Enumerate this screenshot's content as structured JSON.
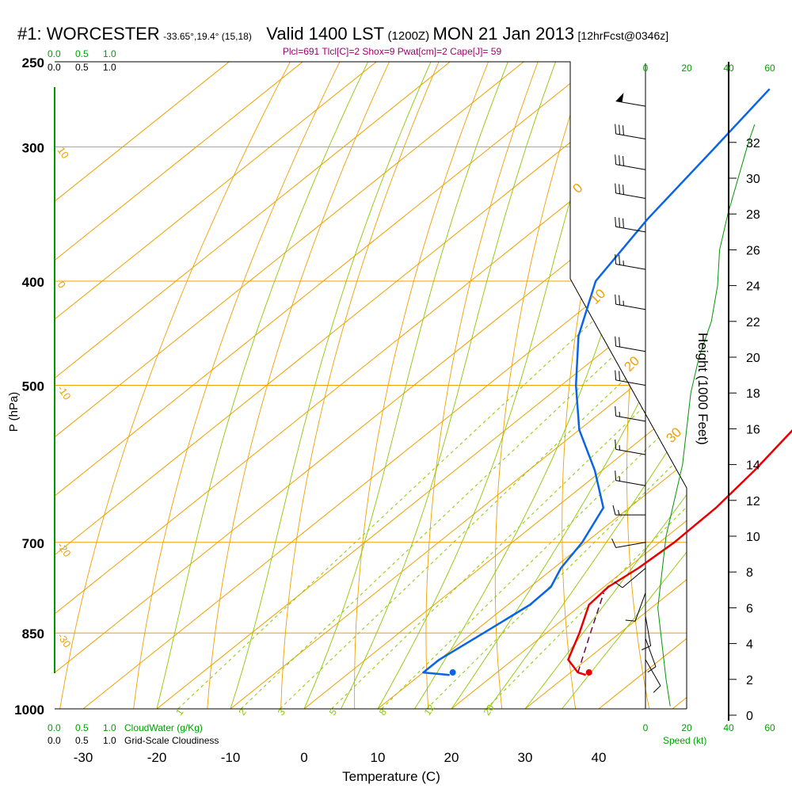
{
  "header": {
    "station": "#1: WORCESTER",
    "coords": "-33.65°,19.4° (15,18)",
    "valid": "Valid 1400 LST",
    "utc": "(1200Z)",
    "date": "MON 21 Jan 2013",
    "forecast": "[12hrFcst@0346z]",
    "indices": "Plcl=691 Tlcl[C]=2 Shox=9 Pwat[cm]=2 Cape[J]= 59"
  },
  "scales": {
    "cloudwater_ticks": [
      "0.0",
      "0.5",
      "1.0"
    ],
    "cloudiness_ticks": [
      "0.0",
      "0.5",
      "1.0"
    ],
    "cloudwater_label": "CloudWater (g/Kg)",
    "cloudiness_label": "Grid-Scale Cloudiness",
    "speed_ticks": [
      "0",
      "20",
      "40",
      "60"
    ],
    "speed_label": "Speed (kt)"
  },
  "colors": {
    "isotherm": "#f0a000",
    "dry_adiabat": "#8cc800",
    "moist_adiabat": "#8cc800",
    "mixing_ratio": "#8cc800",
    "temperature": "#e60000",
    "dewpoint": "#0a64e6",
    "parcel": "#6e0046",
    "speed": "#009600",
    "green_text": "#00a000",
    "index_text": "#a0006e"
  },
  "chart_data": {
    "type": "skew-t log-p sounding",
    "ylabel": "P (hPa)",
    "xlabel": "Temperature (C)",
    "y2label": "Height (1000 Feet)",
    "pressure_ticks": [
      250,
      300,
      400,
      500,
      700,
      850,
      1000
    ],
    "temperature_ticks": [
      -30,
      -20,
      -10,
      0,
      10,
      20,
      30,
      40
    ],
    "height_ticks_kft": [
      0,
      2,
      4,
      6,
      8,
      10,
      12,
      14,
      16,
      18,
      20,
      22,
      24,
      26,
      28,
      30,
      32
    ],
    "isotherm_labels": [
      "10",
      "0",
      "-10",
      "-20",
      "-30",
      "0",
      "10",
      "20",
      "30"
    ],
    "mixing_ratio_labels": [
      "1",
      "2",
      "3",
      "5",
      "8",
      "12",
      "20"
    ],
    "temperature_profile": [
      {
        "p": 930,
        "t": 32.5
      },
      {
        "p": 925,
        "t": 31.0
      },
      {
        "p": 900,
        "t": 27.5
      },
      {
        "p": 850,
        "t": 24.5
      },
      {
        "p": 800,
        "t": 21.0
      },
      {
        "p": 770,
        "t": 20.6
      },
      {
        "p": 740,
        "t": 21.5
      },
      {
        "p": 700,
        "t": 22.0
      },
      {
        "p": 650,
        "t": 21.8
      },
      {
        "p": 600,
        "t": 20.7
      },
      {
        "p": 550,
        "t": 19.0
      },
      {
        "p": 500,
        "t": 16.5
      },
      {
        "p": 450,
        "t": 13.0
      },
      {
        "p": 400,
        "t": 9.5
      },
      {
        "p": 350,
        "t": 6.0
      },
      {
        "p": 300,
        "t": 1.5
      },
      {
        "p": 265,
        "t": -1.0
      }
    ],
    "dewpoint_profile": [
      {
        "p": 930,
        "t": 14.0
      },
      {
        "p": 925,
        "t": 10.0
      },
      {
        "p": 900,
        "t": 10.0
      },
      {
        "p": 850,
        "t": 11.5
      },
      {
        "p": 800,
        "t": 13.0
      },
      {
        "p": 770,
        "t": 12.8
      },
      {
        "p": 740,
        "t": 11.0
      },
      {
        "p": 700,
        "t": 9.5
      },
      {
        "p": 650,
        "t": 6.5
      },
      {
        "p": 600,
        "t": -1.0
      },
      {
        "p": 550,
        "t": -10.0
      },
      {
        "p": 500,
        "t": -18.0
      },
      {
        "p": 450,
        "t": -26.0
      },
      {
        "p": 400,
        "t": -33.0
      },
      {
        "p": 350,
        "t": -36.5
      },
      {
        "p": 300,
        "t": -39.5
      },
      {
        "p": 265,
        "t": -42.0
      }
    ],
    "parcel_profile": [
      {
        "p": 925,
        "t": 31.0
      },
      {
        "p": 850,
        "t": 26.0
      },
      {
        "p": 780,
        "t": 21.0
      }
    ],
    "surface_temperature_marker": {
      "p": 925,
      "t": 32.5
    },
    "surface_dewpoint_marker": {
      "p": 925,
      "t": 14.0
    },
    "wind_barbs": [
      {
        "p": 275,
        "speed": 50,
        "dir": 280
      },
      {
        "p": 295,
        "speed": 30,
        "dir": 280
      },
      {
        "p": 315,
        "speed": 30,
        "dir": 280
      },
      {
        "p": 335,
        "speed": 30,
        "dir": 280
      },
      {
        "p": 360,
        "speed": 30,
        "dir": 280
      },
      {
        "p": 390,
        "speed": 25,
        "dir": 280
      },
      {
        "p": 425,
        "speed": 25,
        "dir": 280
      },
      {
        "p": 465,
        "speed": 20,
        "dir": 280
      },
      {
        "p": 500,
        "speed": 20,
        "dir": 280
      },
      {
        "p": 540,
        "speed": 15,
        "dir": 280
      },
      {
        "p": 580,
        "speed": 15,
        "dir": 280
      },
      {
        "p": 620,
        "speed": 15,
        "dir": 280
      },
      {
        "p": 660,
        "speed": 15,
        "dir": 270
      },
      {
        "p": 700,
        "speed": 10,
        "dir": 260
      },
      {
        "p": 740,
        "speed": 10,
        "dir": 230
      },
      {
        "p": 780,
        "speed": 10,
        "dir": 200
      },
      {
        "p": 820,
        "speed": 10,
        "dir": 170
      },
      {
        "p": 860,
        "speed": 10,
        "dir": 160
      },
      {
        "p": 900,
        "speed": 10,
        "dir": 150
      }
    ],
    "speed_profile": [
      {
        "h": 0.5,
        "kt": 12
      },
      {
        "h": 2,
        "kt": 10
      },
      {
        "h": 4,
        "kt": 8
      },
      {
        "h": 6,
        "kt": 6
      },
      {
        "h": 8,
        "kt": 8
      },
      {
        "h": 10,
        "kt": 10
      },
      {
        "h": 12,
        "kt": 14
      },
      {
        "h": 14,
        "kt": 18
      },
      {
        "h": 16,
        "kt": 20
      },
      {
        "h": 18,
        "kt": 22
      },
      {
        "h": 20,
        "kt": 26
      },
      {
        "h": 22,
        "kt": 32
      },
      {
        "h": 24,
        "kt": 35
      },
      {
        "h": 26,
        "kt": 36
      },
      {
        "h": 28,
        "kt": 40
      },
      {
        "h": 30,
        "kt": 45
      },
      {
        "h": 32,
        "kt": 50
      },
      {
        "h": 33,
        "kt": 53
      }
    ]
  }
}
